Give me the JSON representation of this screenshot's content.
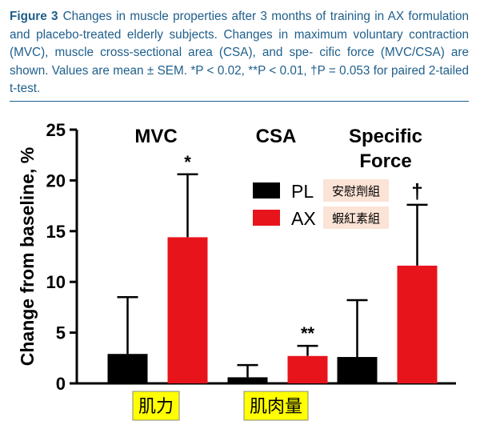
{
  "caption": {
    "label": "Figure 3",
    "lines": [
      "Changes in muscle properties after 3 months of training in AX",
      "formulation and placebo-treated elderly subjects. Changes in maximum",
      "voluntary contraction (MVC), muscle cross-sectional area (CSA), and spe-",
      "cific force (MVC/CSA) are shown. Values are mean ± SEM. *P < 0.02,",
      "**P < 0.01, †P = 0.053 for paired 2-tailed t-test."
    ]
  },
  "chart_data": {
    "type": "bar",
    "ylabel": "Change from baseline, %",
    "ylim": [
      0,
      25
    ],
    "yticks": [
      0,
      5,
      10,
      15,
      20,
      25
    ],
    "grid": false,
    "legend_position": "center-top",
    "groups": [
      {
        "label_lines": [
          "MVC"
        ],
        "bars": [
          {
            "series": "PL",
            "value": 2.9,
            "error": 5.6,
            "marker": ""
          },
          {
            "series": "AX",
            "value": 14.4,
            "error": 6.2,
            "marker": "*"
          }
        ],
        "annotation": "肌力"
      },
      {
        "label_lines": [
          "CSA"
        ],
        "bars": [
          {
            "series": "PL",
            "value": 0.6,
            "error": 1.2,
            "marker": ""
          },
          {
            "series": "AX",
            "value": 2.7,
            "error": 1.0,
            "marker": "**"
          }
        ],
        "annotation": "肌肉量"
      },
      {
        "label_lines": [
          "Specific",
          "Force"
        ],
        "bars": [
          {
            "series": "PL",
            "value": 2.6,
            "error": 5.6,
            "marker": ""
          },
          {
            "series": "AX",
            "value": 11.6,
            "error": 6.0,
            "marker": "†"
          }
        ],
        "annotation": ""
      }
    ],
    "series": [
      {
        "name": "PL",
        "color": "#000000",
        "note": "安慰劑組"
      },
      {
        "name": "AX",
        "color": "#e8141c",
        "note": "蝦紅素組"
      }
    ]
  },
  "annotation_style": {
    "background": "#ffff00",
    "note_background": "#fbe3d6"
  }
}
